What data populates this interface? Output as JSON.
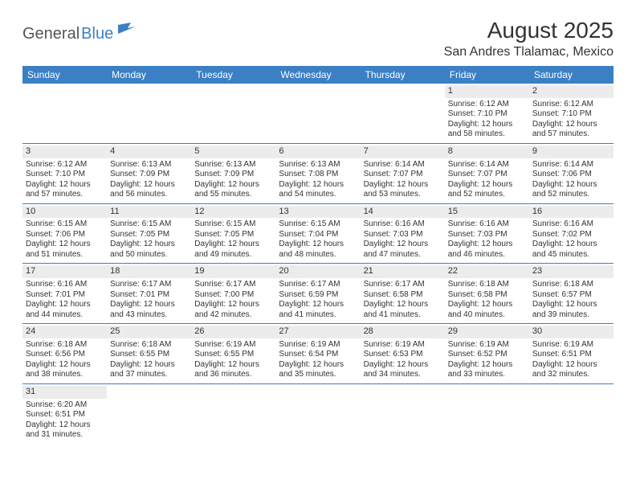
{
  "logo": {
    "part1": "General",
    "part2": "Blue"
  },
  "title": "August 2025",
  "location": "San Andres Tlalamac, Mexico",
  "colors": {
    "header_bg": "#3b7fc4",
    "header_text": "#ffffff",
    "daynum_bg": "#ececec",
    "rule": "#3b7fc4",
    "text": "#333333",
    "background": "#ffffff"
  },
  "typography": {
    "title_fontsize": 28,
    "location_fontsize": 16,
    "weekday_fontsize": 12,
    "cell_fontsize": 10
  },
  "weekdays": [
    "Sunday",
    "Monday",
    "Tuesday",
    "Wednesday",
    "Thursday",
    "Friday",
    "Saturday"
  ],
  "label": {
    "sunrise": "Sunrise",
    "sunset": "Sunset",
    "daylight": "Daylight"
  },
  "weeks": [
    [
      null,
      null,
      null,
      null,
      null,
      {
        "n": "1",
        "sr": "6:12 AM",
        "ss": "7:10 PM",
        "dl": "12 hours and 58 minutes."
      },
      {
        "n": "2",
        "sr": "6:12 AM",
        "ss": "7:10 PM",
        "dl": "12 hours and 57 minutes."
      }
    ],
    [
      {
        "n": "3",
        "sr": "6:12 AM",
        "ss": "7:10 PM",
        "dl": "12 hours and 57 minutes."
      },
      {
        "n": "4",
        "sr": "6:13 AM",
        "ss": "7:09 PM",
        "dl": "12 hours and 56 minutes."
      },
      {
        "n": "5",
        "sr": "6:13 AM",
        "ss": "7:09 PM",
        "dl": "12 hours and 55 minutes."
      },
      {
        "n": "6",
        "sr": "6:13 AM",
        "ss": "7:08 PM",
        "dl": "12 hours and 54 minutes."
      },
      {
        "n": "7",
        "sr": "6:14 AM",
        "ss": "7:07 PM",
        "dl": "12 hours and 53 minutes."
      },
      {
        "n": "8",
        "sr": "6:14 AM",
        "ss": "7:07 PM",
        "dl": "12 hours and 52 minutes."
      },
      {
        "n": "9",
        "sr": "6:14 AM",
        "ss": "7:06 PM",
        "dl": "12 hours and 52 minutes."
      }
    ],
    [
      {
        "n": "10",
        "sr": "6:15 AM",
        "ss": "7:06 PM",
        "dl": "12 hours and 51 minutes."
      },
      {
        "n": "11",
        "sr": "6:15 AM",
        "ss": "7:05 PM",
        "dl": "12 hours and 50 minutes."
      },
      {
        "n": "12",
        "sr": "6:15 AM",
        "ss": "7:05 PM",
        "dl": "12 hours and 49 minutes."
      },
      {
        "n": "13",
        "sr": "6:15 AM",
        "ss": "7:04 PM",
        "dl": "12 hours and 48 minutes."
      },
      {
        "n": "14",
        "sr": "6:16 AM",
        "ss": "7:03 PM",
        "dl": "12 hours and 47 minutes."
      },
      {
        "n": "15",
        "sr": "6:16 AM",
        "ss": "7:03 PM",
        "dl": "12 hours and 46 minutes."
      },
      {
        "n": "16",
        "sr": "6:16 AM",
        "ss": "7:02 PM",
        "dl": "12 hours and 45 minutes."
      }
    ],
    [
      {
        "n": "17",
        "sr": "6:16 AM",
        "ss": "7:01 PM",
        "dl": "12 hours and 44 minutes."
      },
      {
        "n": "18",
        "sr": "6:17 AM",
        "ss": "7:01 PM",
        "dl": "12 hours and 43 minutes."
      },
      {
        "n": "19",
        "sr": "6:17 AM",
        "ss": "7:00 PM",
        "dl": "12 hours and 42 minutes."
      },
      {
        "n": "20",
        "sr": "6:17 AM",
        "ss": "6:59 PM",
        "dl": "12 hours and 41 minutes."
      },
      {
        "n": "21",
        "sr": "6:17 AM",
        "ss": "6:58 PM",
        "dl": "12 hours and 41 minutes."
      },
      {
        "n": "22",
        "sr": "6:18 AM",
        "ss": "6:58 PM",
        "dl": "12 hours and 40 minutes."
      },
      {
        "n": "23",
        "sr": "6:18 AM",
        "ss": "6:57 PM",
        "dl": "12 hours and 39 minutes."
      }
    ],
    [
      {
        "n": "24",
        "sr": "6:18 AM",
        "ss": "6:56 PM",
        "dl": "12 hours and 38 minutes."
      },
      {
        "n": "25",
        "sr": "6:18 AM",
        "ss": "6:55 PM",
        "dl": "12 hours and 37 minutes."
      },
      {
        "n": "26",
        "sr": "6:19 AM",
        "ss": "6:55 PM",
        "dl": "12 hours and 36 minutes."
      },
      {
        "n": "27",
        "sr": "6:19 AM",
        "ss": "6:54 PM",
        "dl": "12 hours and 35 minutes."
      },
      {
        "n": "28",
        "sr": "6:19 AM",
        "ss": "6:53 PM",
        "dl": "12 hours and 34 minutes."
      },
      {
        "n": "29",
        "sr": "6:19 AM",
        "ss": "6:52 PM",
        "dl": "12 hours and 33 minutes."
      },
      {
        "n": "30",
        "sr": "6:19 AM",
        "ss": "6:51 PM",
        "dl": "12 hours and 32 minutes."
      }
    ],
    [
      {
        "n": "31",
        "sr": "6:20 AM",
        "ss": "6:51 PM",
        "dl": "12 hours and 31 minutes."
      },
      null,
      null,
      null,
      null,
      null,
      null
    ]
  ]
}
